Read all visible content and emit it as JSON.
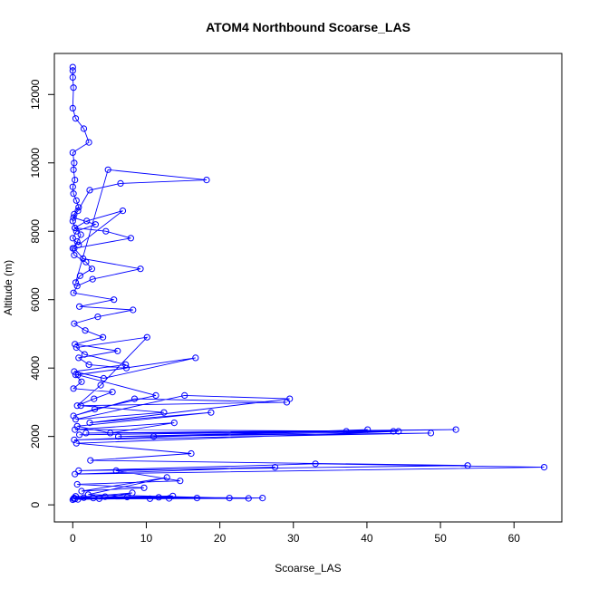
{
  "chart_data": {
    "type": "line",
    "title": "ATOM4 Northbound Scoarse_LAS",
    "xlabel": "Scoarse_LAS",
    "ylabel": "Altitude (m)",
    "xlim": [
      -2.5,
      66.5
    ],
    "ylim": [
      -500,
      13200
    ],
    "xticks": [
      0,
      10,
      20,
      30,
      40,
      50,
      60
    ],
    "yticks": [
      0,
      2000,
      4000,
      6000,
      8000,
      10000,
      12000
    ],
    "grid": false,
    "legend": "none",
    "marker": "open-circle",
    "series": [
      {
        "color": "#0000ff",
        "x": [
          0.0,
          0.0,
          0.0,
          0.1,
          0.0,
          0.4,
          1.5,
          2.2,
          0.0,
          0.2,
          0.1,
          0.3,
          0.0,
          0.1,
          0.5,
          0.8,
          0.2,
          0.0,
          0.3,
          1.1,
          0.6,
          0.0,
          0.2,
          1.8,
          2.6,
          1.0,
          0.4,
          4.8,
          18.2,
          6.5,
          2.3,
          0.7,
          0.1,
          3.1,
          0.5,
          0.0,
          0.8,
          6.8,
          1.9,
          0.3,
          4.5,
          7.9,
          0.2,
          1.4,
          9.2,
          2.7,
          0.6,
          0.1,
          5.6,
          0.9,
          8.2,
          3.4,
          0.2,
          1.7,
          4.1,
          0.3,
          6.1,
          0.8,
          2.2,
          7.3,
          0.4,
          1.2,
          0.1,
          5.4,
          2.9,
          0.6,
          3.8,
          10.1,
          0.5,
          1.6,
          7.2,
          0.2,
          4.2,
          16.7,
          0.7,
          11.3,
          3.0,
          0.1,
          8.4,
          29.1,
          1.1,
          12.4,
          0.4,
          15.2,
          29.5,
          2.3,
          18.8,
          0.6,
          5.1,
          13.8,
          0.3,
          43.6,
          1.8,
          52.1,
          0.9,
          37.2,
          6.2,
          48.7,
          0.2,
          40.1,
          11.0,
          44.3,
          0.5,
          16.1,
          2.4,
          53.7,
          0.8,
          33.0,
          64.1,
          0.3,
          27.5,
          5.9,
          14.6,
          0.6,
          9.7,
          1.2,
          12.8,
          2.1,
          21.3,
          0.4,
          25.8,
          3.6,
          8.1,
          0.2,
          11.7,
          13.1,
          0.7,
          16.9,
          4.4,
          10.5,
          1.5,
          23.9,
          0.3,
          7.4,
          13.6,
          2.8,
          0.1,
          0.0
        ],
        "y": [
          12800,
          12700,
          12500,
          12200,
          11600,
          11300,
          11000,
          10600,
          10300,
          10000,
          9800,
          9500,
          9300,
          9100,
          8900,
          8700,
          8500,
          8300,
          8100,
          7900,
          7700,
          7500,
          7300,
          7100,
          6900,
          6700,
          6500,
          9800,
          9500,
          9400,
          9200,
          8600,
          8400,
          8200,
          8000,
          7800,
          7600,
          8600,
          8300,
          8100,
          8000,
          7800,
          7500,
          7200,
          6900,
          6600,
          6400,
          6200,
          6000,
          5800,
          5700,
          5500,
          5300,
          5100,
          4900,
          4700,
          4500,
          4300,
          4100,
          4000,
          3800,
          3600,
          3400,
          3300,
          3100,
          2900,
          3500,
          4900,
          4600,
          4400,
          4100,
          3900,
          3700,
          4300,
          3800,
          3200,
          2800,
          2600,
          3100,
          3000,
          2900,
          2700,
          2500,
          3200,
          3100,
          2400,
          2700,
          2300,
          2100,
          2400,
          2200,
          2150,
          2100,
          2200,
          2050,
          2150,
          2000,
          2100,
          1900,
          2200,
          2000,
          2150,
          1800,
          1500,
          1300,
          1150,
          1000,
          1200,
          1100,
          900,
          1100,
          1000,
          700,
          600,
          500,
          400,
          800,
          300,
          200,
          250,
          200,
          180,
          350,
          200,
          220,
          190,
          160,
          200,
          240,
          180,
          210,
          190,
          170,
          230,
          260,
          200,
          180,
          150
        ]
      }
    ]
  }
}
